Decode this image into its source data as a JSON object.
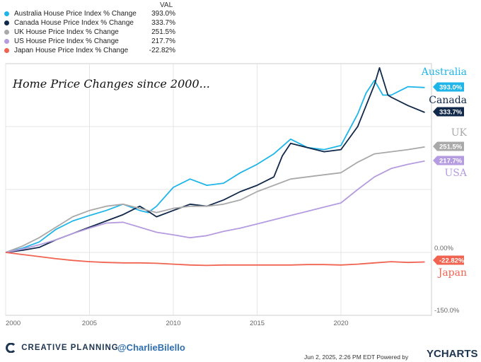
{
  "legend": {
    "header": "VAL",
    "items": [
      {
        "label": "Australia House Price Index % Change",
        "value": "393.0%",
        "color": "#1fb5e8"
      },
      {
        "label": "Canada House Price Index % Change",
        "value": "333.7%",
        "color": "#10284a"
      },
      {
        "label": "UK House Price Index % Change",
        "value": "251.5%",
        "color": "#a9a9a9"
      },
      {
        "label": "US House Price Index % Change",
        "value": "217.7%",
        "color": "#b59be0"
      },
      {
        "label": "Japan House Price Index % Change",
        "value": "-22.82%",
        "color": "#f06350"
      }
    ]
  },
  "chart_data": {
    "type": "line",
    "title": "Home Price Changes since 2000...",
    "xlabel": "",
    "ylabel": "",
    "x_ticks": [
      "2000",
      "2005",
      "2010",
      "2015",
      "2020"
    ],
    "y_tick_labels": [
      "0.00%",
      "-150.0%"
    ],
    "xlim": [
      2000,
      2025.4
    ],
    "ylim": [
      -150,
      450
    ],
    "grid": true,
    "series": [
      {
        "name": "Australia",
        "label": "Australia",
        "badge": "393.0%",
        "color": "#1fb5e8",
        "x": [
          2000,
          2001,
          2002,
          2003,
          2004,
          2005,
          2006,
          2007,
          2008,
          2008.5,
          2009,
          2010,
          2011,
          2012,
          2013,
          2014,
          2015,
          2016,
          2017,
          2018,
          2019,
          2020,
          2021,
          2021.5,
          2022,
          2022.5,
          2023,
          2024,
          2025
        ],
        "y": [
          0,
          10,
          25,
          55,
          75,
          88,
          100,
          115,
          100,
          95,
          110,
          155,
          175,
          160,
          165,
          190,
          210,
          235,
          270,
          250,
          245,
          255,
          330,
          380,
          410,
          375,
          375,
          395,
          393
        ]
      },
      {
        "name": "Canada",
        "label": "Canada",
        "badge": "333.7%",
        "color": "#10284a",
        "x": [
          2000,
          2001,
          2002,
          2003,
          2004,
          2005,
          2006,
          2007,
          2008,
          2008.5,
          2009,
          2010,
          2011,
          2012,
          2013,
          2014,
          2015,
          2016,
          2016.5,
          2017,
          2018,
          2019,
          2020,
          2021,
          2022,
          2022.3,
          2022.8,
          2023,
          2024,
          2025
        ],
        "y": [
          0,
          5,
          12,
          30,
          45,
          60,
          75,
          90,
          110,
          98,
          85,
          100,
          115,
          110,
          125,
          145,
          160,
          180,
          230,
          260,
          250,
          240,
          245,
          300,
          400,
          440,
          375,
          370,
          350,
          333.7
        ]
      },
      {
        "name": "UK",
        "label": "UK",
        "badge": "251.5%",
        "color": "#a9a9a9",
        "x": [
          2000,
          2001,
          2002,
          2003,
          2004,
          2005,
          2006,
          2007,
          2008,
          2009,
          2010,
          2011,
          2012,
          2013,
          2014,
          2015,
          2016,
          2017,
          2018,
          2019,
          2020,
          2021,
          2022,
          2023,
          2024,
          2025
        ],
        "y": [
          0,
          15,
          35,
          60,
          85,
          100,
          110,
          115,
          105,
          95,
          105,
          110,
          110,
          115,
          125,
          145,
          160,
          175,
          180,
          185,
          190,
          215,
          235,
          240,
          245,
          251.5
        ]
      },
      {
        "name": "USA",
        "label": "USA",
        "badge": "217.7%",
        "color": "#b59be0",
        "x": [
          2000,
          2001,
          2002,
          2003,
          2004,
          2005,
          2006,
          2007,
          2008,
          2009,
          2010,
          2011,
          2012,
          2013,
          2014,
          2015,
          2016,
          2017,
          2018,
          2019,
          2020,
          2021,
          2022,
          2023,
          2024,
          2025
        ],
        "y": [
          0,
          8,
          18,
          30,
          45,
          58,
          70,
          72,
          60,
          48,
          42,
          35,
          40,
          50,
          58,
          68,
          78,
          88,
          98,
          108,
          118,
          150,
          180,
          200,
          210,
          217.7
        ]
      },
      {
        "name": "Japan",
        "label": "Japan",
        "badge": "-22.82%",
        "color": "#f06350",
        "x": [
          2000,
          2001,
          2002,
          2003,
          2004,
          2005,
          2006,
          2007,
          2008,
          2009,
          2010,
          2011,
          2012,
          2013,
          2014,
          2015,
          2016,
          2017,
          2018,
          2019,
          2020,
          2021,
          2022,
          2023,
          2024,
          2025
        ],
        "y": [
          0,
          -5,
          -10,
          -15,
          -19,
          -22,
          -24,
          -25,
          -25,
          -26,
          -28,
          -30,
          -31,
          -30,
          -30,
          -30,
          -30,
          -30,
          -29,
          -29,
          -30,
          -28,
          -25,
          -22,
          -24,
          -22.82
        ]
      }
    ]
  },
  "footer": {
    "brand": "CREATIVE PLANNING",
    "handle": "@CharlieBilello",
    "date": "Jun 2, 2025, 2:26 PM EDT Powered by",
    "provider": "YCHARTS"
  }
}
